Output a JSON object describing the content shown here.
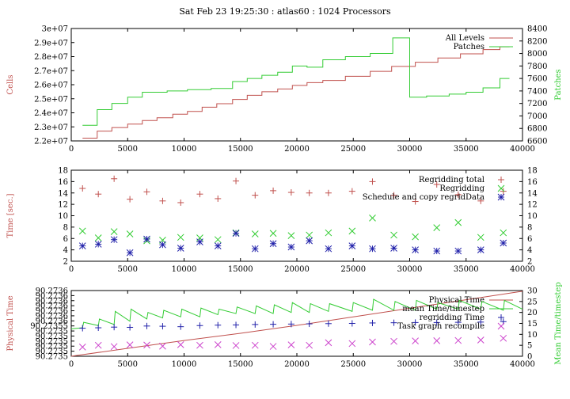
{
  "title": "Sat Feb 23 19:25:30 : atlas60 : 1024 Processors",
  "chart_data": [
    {
      "type": "line",
      "ylabel": "Cells",
      "y2label": "Patches",
      "xlim": [
        0,
        40000
      ],
      "ylim": [
        22000000,
        30000000
      ],
      "y2lim": [
        6600,
        8400
      ],
      "xticks": [
        0,
        5000,
        10000,
        15000,
        20000,
        25000,
        30000,
        35000,
        40000
      ],
      "yticks": [
        "2.2e+07",
        "2.3e+07",
        "2.4e+07",
        "2.5e+07",
        "2.6e+07",
        "2.7e+07",
        "2.8e+07",
        "2.9e+07",
        "3e+07"
      ],
      "y2ticks": [
        6600,
        6800,
        7000,
        7200,
        7400,
        7600,
        7800,
        8000,
        8200,
        8400
      ],
      "legend_position": "top-right",
      "series": [
        {
          "name": "All Levels",
          "color": "#c0504d",
          "axis": "left",
          "step": true,
          "x": [
            1000,
            2300,
            3600,
            5000,
            6300,
            7600,
            9000,
            10300,
            11600,
            12900,
            14300,
            15600,
            16900,
            18300,
            19600,
            20900,
            22300,
            24300,
            26500,
            28400,
            30500,
            32500,
            34500,
            36500,
            38000
          ],
          "y": [
            22200000,
            22700000,
            22950000,
            23200000,
            23450000,
            23650000,
            23900000,
            24100000,
            24400000,
            24650000,
            24950000,
            25250000,
            25500000,
            25700000,
            25950000,
            26150000,
            26300000,
            26600000,
            26950000,
            27300000,
            27600000,
            27900000,
            28200000,
            28500000,
            28700000
          ]
        },
        {
          "name": "Patches",
          "color": "#33cc33",
          "axis": "right",
          "step": true,
          "x": [
            1000,
            2300,
            3600,
            5000,
            6300,
            8500,
            10300,
            12400,
            14300,
            15600,
            16900,
            18300,
            19600,
            20900,
            22300,
            24300,
            26500,
            28500,
            30000,
            31500,
            33500,
            35000,
            36500,
            38000
          ],
          "y": [
            6850,
            7100,
            7200,
            7300,
            7380,
            7400,
            7420,
            7440,
            7550,
            7600,
            7650,
            7700,
            7800,
            7780,
            7900,
            7950,
            8000,
            8250,
            7300,
            7320,
            7350,
            7380,
            7450,
            7600
          ]
        }
      ]
    },
    {
      "type": "scatter",
      "ylabel": "Time [sec.]",
      "xlim": [
        0,
        40000
      ],
      "ylim": [
        2,
        18
      ],
      "y2lim": [
        2,
        18
      ],
      "xticks": [
        0,
        5000,
        10000,
        15000,
        20000,
        25000,
        30000,
        35000,
        40000
      ],
      "yticks": [
        2,
        4,
        6,
        8,
        10,
        12,
        14,
        16,
        18
      ],
      "y2ticks": [
        2,
        4,
        6,
        8,
        10,
        12,
        14,
        16,
        18
      ],
      "legend_position": "top-right",
      "series": [
        {
          "name": "Regridding total",
          "color": "#c0504d",
          "marker": "plus",
          "x": [
            1000,
            2400,
            3800,
            5200,
            6700,
            8100,
            9700,
            11400,
            13000,
            14600,
            16300,
            17900,
            19500,
            21100,
            22800,
            24900,
            26700,
            28600,
            30500,
            32400,
            34300,
            36300,
            38300
          ],
          "y": [
            14.8,
            13.8,
            16.5,
            12.9,
            14.2,
            12.6,
            12.3,
            13.8,
            13.0,
            16.1,
            13.6,
            14.4,
            14.1,
            14.0,
            14.0,
            14.3,
            16.0,
            13.6,
            12.5,
            15.5,
            13.7,
            12.6,
            14.3
          ]
        },
        {
          "name": "Regridding",
          "color": "#33cc33",
          "marker": "cross",
          "x": [
            1000,
            2400,
            3800,
            5200,
            6700,
            8100,
            9700,
            11400,
            13000,
            14600,
            16300,
            17900,
            19500,
            21100,
            22800,
            24900,
            26700,
            28600,
            30500,
            32400,
            34300,
            36300,
            38300
          ],
          "y": [
            7.3,
            6.1,
            7.2,
            6.8,
            5.6,
            5.7,
            6.2,
            6.1,
            5.8,
            7.0,
            6.8,
            6.9,
            6.5,
            6.6,
            7.0,
            7.3,
            9.6,
            6.6,
            6.3,
            7.9,
            8.8,
            6.2,
            7.0
          ]
        },
        {
          "name": "Schedule and copy regridData",
          "color": "#2222aa",
          "marker": "star",
          "x": [
            1000,
            2400,
            3800,
            5200,
            6700,
            8100,
            9700,
            11400,
            13000,
            14600,
            16300,
            17900,
            19500,
            21100,
            22800,
            24900,
            26700,
            28600,
            30500,
            32400,
            34300,
            36300,
            38300
          ],
          "y": [
            4.7,
            5.0,
            5.8,
            3.5,
            5.9,
            4.9,
            4.3,
            5.4,
            4.7,
            6.9,
            4.2,
            5.1,
            4.5,
            5.6,
            4.2,
            4.7,
            4.2,
            4.3,
            4.0,
            3.8,
            3.8,
            4.0,
            5.2
          ]
        }
      ]
    },
    {
      "type": "line",
      "ylabel": "Physical Time",
      "y2label": "Mean Time/timestep",
      "xlim": [
        0,
        40000
      ],
      "y2lim": [
        0,
        30
      ],
      "xticks": [
        0,
        5000,
        10000,
        15000,
        20000,
        25000,
        30000,
        35000,
        40000
      ],
      "yticks": [
        "90.2735",
        "90.2735",
        "90.2735",
        "90.2735",
        "90.2735",
        "90.2735",
        "90.27355",
        "90.2736",
        "90.2736",
        "90.2736",
        "90.2736",
        "90.2736",
        "90.2736",
        "90.2736"
      ],
      "y2ticks": [
        0,
        5,
        10,
        15,
        20,
        25,
        30
      ],
      "legend_position": "top-right",
      "series": [
        {
          "name": "Physical Time",
          "color": "#c0504d",
          "axis": "left",
          "x": [
            0,
            5000,
            10000,
            15000,
            20000,
            25000,
            30000,
            35000,
            40000
          ],
          "y_fraction": [
            0.0,
            0.12,
            0.24,
            0.35,
            0.47,
            0.6,
            0.73,
            0.86,
            0.99
          ]
        },
        {
          "name": "mean Time/timestep",
          "color": "#33cc33",
          "axis": "right",
          "x": [
            0,
            1000,
            1100,
            2400,
            2500,
            3800,
            3900,
            5200,
            5300,
            6700,
            6800,
            8100,
            8200,
            9700,
            9800,
            11400,
            11500,
            13000,
            13100,
            14600,
            14700,
            16300,
            16400,
            17900,
            18000,
            19500,
            19600,
            21100,
            21200,
            22800,
            22900,
            24900,
            25000,
            26700,
            26800,
            28600,
            28700,
            30500,
            30600,
            32400,
            32500,
            34300,
            34400,
            36300,
            36400,
            38300,
            38400,
            40000
          ],
          "y": [
            12.5,
            13.0,
            15.5,
            14.0,
            17.0,
            14.5,
            20.5,
            16.0,
            21.5,
            17.0,
            20.0,
            17.5,
            21.0,
            18.0,
            21.5,
            18.0,
            22.0,
            19.0,
            21.5,
            19.5,
            22.5,
            19.5,
            23.0,
            19.5,
            23.5,
            20.0,
            24.5,
            20.0,
            24.0,
            20.5,
            24.0,
            20.5,
            24.5,
            21.0,
            26.0,
            21.0,
            25.0,
            21.0,
            25.5,
            21.5,
            24.5,
            21.5,
            25.5,
            21.5,
            25.0,
            21.0,
            25.5,
            21.5
          ]
        },
        {
          "name": "regridding Time",
          "color": "#2222aa",
          "marker": "plus",
          "axis": "right",
          "x": [
            1000,
            2400,
            3800,
            5200,
            6700,
            8100,
            9700,
            11400,
            13000,
            14600,
            16300,
            17900,
            19500,
            21100,
            22800,
            24900,
            26700,
            28600,
            30500,
            32400,
            34300,
            36300,
            38300
          ],
          "y": [
            12.8,
            13.0,
            13.3,
            13.2,
            13.8,
            13.7,
            13.5,
            14.0,
            14.2,
            14.3,
            14.5,
            14.6,
            14.7,
            14.8,
            14.9,
            15.0,
            15.2,
            15.3,
            15.4,
            15.4,
            15.5,
            15.6,
            15.8
          ]
        },
        {
          "name": "Task graph recompile",
          "color": "#cc44cc",
          "marker": "cross",
          "axis": "right",
          "x": [
            1000,
            2400,
            3800,
            5200,
            6700,
            8100,
            9700,
            11400,
            13000,
            14600,
            16300,
            17900,
            19500,
            21100,
            22800,
            24900,
            26700,
            28600,
            30500,
            32400,
            34300,
            36300,
            38300
          ],
          "y": [
            4.2,
            5.0,
            4.4,
            5.2,
            5.1,
            4.6,
            5.3,
            5.0,
            5.3,
            4.9,
            5.0,
            4.5,
            5.2,
            5.0,
            6.2,
            5.8,
            6.5,
            6.8,
            7.0,
            7.1,
            7.2,
            7.4,
            8.2
          ]
        }
      ]
    }
  ]
}
